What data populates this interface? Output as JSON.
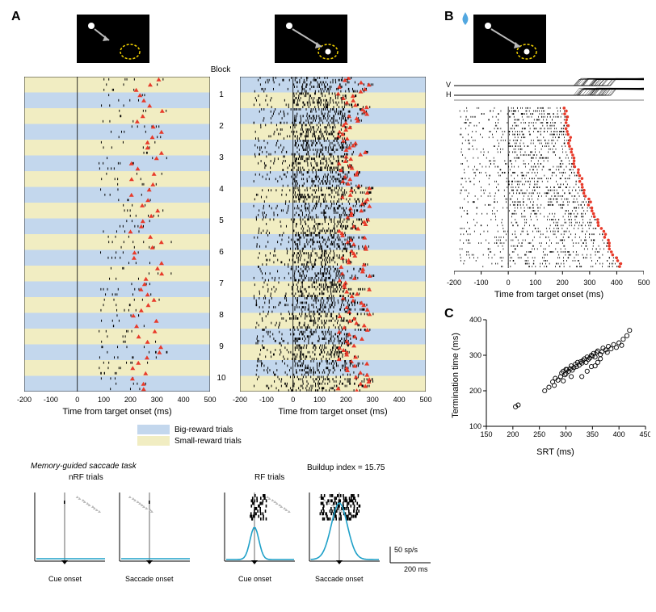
{
  "panelA": {
    "label": "A",
    "blockLabel": "Block",
    "blocks": [
      1,
      2,
      3,
      4,
      5,
      6,
      7,
      8,
      9,
      10
    ],
    "xAxisLabel": "Time from target onset (ms)",
    "xTicks": [
      -200,
      -100,
      0,
      100,
      200,
      300,
      400,
      500
    ],
    "bigRewardColor": "#c3d7ed",
    "smallRewardColor": "#f1edc2",
    "legend": {
      "big": "Big-reward trials",
      "small": "Small-reward trials"
    },
    "left": {
      "stim": {
        "dotX": 18,
        "dotY": 14,
        "ringX": 66,
        "ringY": 48,
        "arrowToRing": false
      },
      "saccadeMean": 260
    },
    "right": {
      "stim": {
        "dotX": 18,
        "dotY": 14,
        "ringX": 66,
        "ringY": 48,
        "arrowToRing": true
      },
      "saccadeMean": 230
    }
  },
  "panelB": {
    "label": "B",
    "stim": {
      "dotX": 18,
      "dotY": 14,
      "ringX": 66,
      "ringY": 48,
      "arrowToRing": true
    },
    "traces": {
      "V": "V",
      "H": "H"
    },
    "xAxisLabel": "Time from target onset (ms)",
    "xTicks": [
      -200,
      -100,
      0,
      100,
      200,
      300,
      400,
      500
    ]
  },
  "panelC": {
    "label": "C",
    "xLabel": "SRT (ms)",
    "yLabel": "Termination time (ms)",
    "xTicks": [
      150,
      200,
      250,
      300,
      350,
      400,
      450
    ],
    "yTicks": [
      100,
      200,
      300,
      400
    ],
    "points": [
      [
        205,
        155
      ],
      [
        210,
        160
      ],
      [
        260,
        200
      ],
      [
        268,
        210
      ],
      [
        275,
        225
      ],
      [
        278,
        215
      ],
      [
        280,
        235
      ],
      [
        285,
        230
      ],
      [
        290,
        240
      ],
      [
        292,
        250
      ],
      [
        295,
        255
      ],
      [
        298,
        245
      ],
      [
        300,
        248
      ],
      [
        302,
        260
      ],
      [
        305,
        255
      ],
      [
        308,
        262
      ],
      [
        310,
        270
      ],
      [
        312,
        258
      ],
      [
        315,
        265
      ],
      [
        318,
        275
      ],
      [
        320,
        268
      ],
      [
        322,
        280
      ],
      [
        325,
        272
      ],
      [
        328,
        282
      ],
      [
        330,
        278
      ],
      [
        332,
        285
      ],
      [
        335,
        290
      ],
      [
        338,
        280
      ],
      [
        340,
        295
      ],
      [
        342,
        288
      ],
      [
        345,
        292
      ],
      [
        348,
        300
      ],
      [
        350,
        298
      ],
      [
        352,
        305
      ],
      [
        355,
        295
      ],
      [
        358,
        308
      ],
      [
        360,
        312
      ],
      [
        365,
        302
      ],
      [
        368,
        310
      ],
      [
        370,
        320
      ],
      [
        375,
        315
      ],
      [
        378,
        308
      ],
      [
        380,
        325
      ],
      [
        385,
        318
      ],
      [
        390,
        330
      ],
      [
        395,
        322
      ],
      [
        400,
        335
      ],
      [
        405,
        328
      ],
      [
        408,
        345
      ],
      [
        415,
        355
      ],
      [
        420,
        370
      ],
      [
        330,
        240
      ],
      [
        340,
        255
      ],
      [
        310,
        240
      ],
      [
        295,
        228
      ],
      [
        300,
        260
      ],
      [
        360,
        280
      ],
      [
        348,
        268
      ],
      [
        365,
        290
      ],
      [
        355,
        270
      ]
    ]
  },
  "bottom": {
    "taskLabel": "Memory-guided saccade task",
    "nRF": "nRF trials",
    "RF": "RF trials",
    "cueOnset": "Cue onset",
    "saccadeOnset": "Saccade onset",
    "buildupIndex": "Buildup index = 15.75",
    "spsLabel": "50 sp/s",
    "msLabel": "200 ms",
    "lineColor": "#1ea0c8"
  },
  "colors": {
    "red": "#e83a2a",
    "yellow": "#f5d400",
    "blue": "#52a7e0",
    "gray": "#9e9e9e",
    "black": "#000000"
  }
}
